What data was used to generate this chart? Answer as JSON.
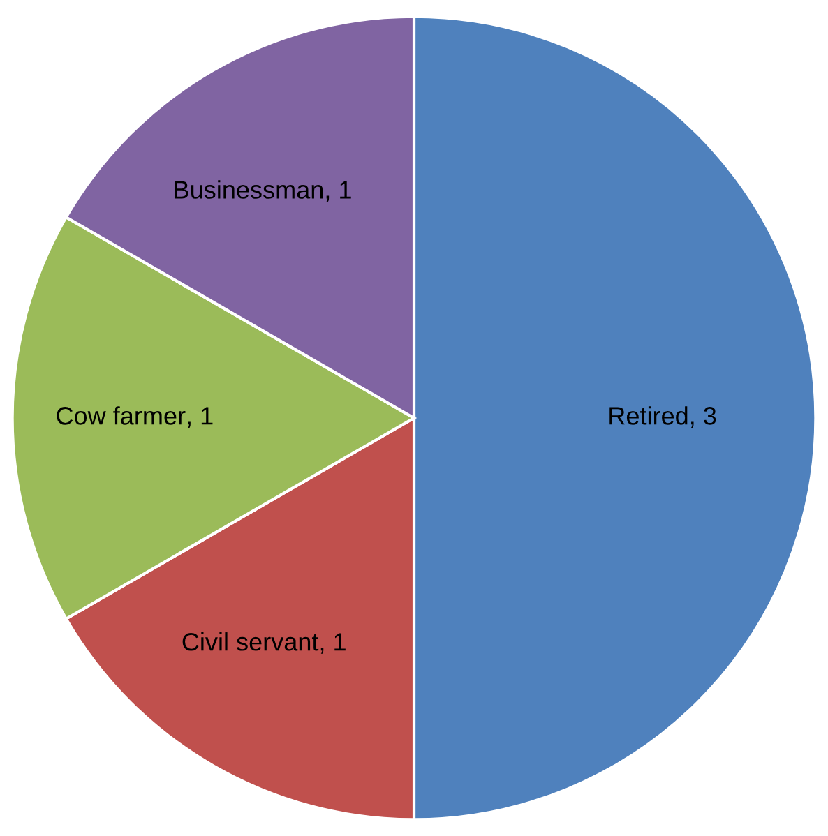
{
  "chart_data": {
    "type": "pie",
    "categories": [
      "Retired",
      "Civil servant",
      "Cow farmer",
      "Businessman"
    ],
    "values": [
      3,
      1,
      1,
      1
    ],
    "value_labels": [
      ", 3",
      ", 1",
      ", 1",
      ", 1"
    ],
    "colors": [
      "#4f81bd",
      "#c0504d",
      "#9bbb59",
      "#8064a2"
    ],
    "legend": false
  }
}
